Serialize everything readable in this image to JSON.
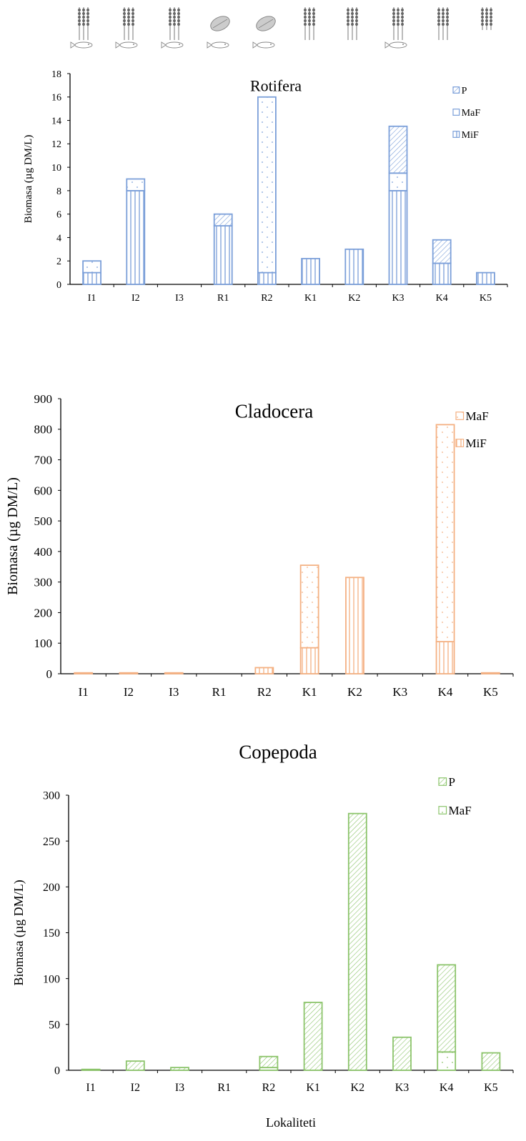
{
  "chart_data": [
    {
      "type": "bar",
      "stacked": true,
      "title": "Rotifera",
      "ylabel": "Biomasa (µg DM/L)",
      "xlabel": "",
      "ylim": [
        0,
        18
      ],
      "yticks": [
        0,
        2,
        4,
        6,
        8,
        10,
        12,
        14,
        16,
        18
      ],
      "categories": [
        "I1",
        "I2",
        "I3",
        "R1",
        "R2",
        "K1",
        "K2",
        "K3",
        "K4",
        "K5"
      ],
      "color": "#7b9fd9",
      "legend_position": "top-right",
      "legend": [
        "P",
        "MaF",
        "MiF"
      ],
      "series": [
        {
          "name": "MiF",
          "pattern": "vertical",
          "values": [
            1,
            8,
            0,
            5,
            1,
            2.2,
            3,
            8,
            1.8,
            1
          ]
        },
        {
          "name": "MaF",
          "pattern": "dots",
          "values": [
            1,
            1,
            0,
            0,
            15,
            0,
            0,
            1.5,
            0,
            0
          ]
        },
        {
          "name": "P",
          "pattern": "diagonal",
          "values": [
            0,
            0,
            0,
            1,
            0,
            0,
            0,
            4,
            2,
            0
          ]
        }
      ]
    },
    {
      "type": "bar",
      "stacked": true,
      "title": "Cladocera",
      "ylabel": "Biomasa (µg DM/L)",
      "xlabel": "",
      "ylim": [
        0,
        900
      ],
      "yticks": [
        0,
        100,
        200,
        300,
        400,
        500,
        600,
        700,
        800,
        900
      ],
      "categories": [
        "I1",
        "I2",
        "I3",
        "R1",
        "R2",
        "K1",
        "K2",
        "K3",
        "K4",
        "K5"
      ],
      "color": "#f4b183",
      "legend_position": "top-right",
      "legend": [
        "MaF",
        "MiF"
      ],
      "series": [
        {
          "name": "MiF",
          "pattern": "vertical",
          "values": [
            3,
            3,
            3,
            0,
            20,
            85,
            315,
            0,
            105,
            3
          ]
        },
        {
          "name": "MaF",
          "pattern": "dots",
          "values": [
            0,
            0,
            0,
            0,
            0,
            270,
            0,
            0,
            710,
            0
          ]
        }
      ]
    },
    {
      "type": "bar",
      "stacked": true,
      "title": "Copepoda",
      "ylabel": "Biomasa (µg DM/L)",
      "xlabel": "Lokaliteti",
      "ylim": [
        0,
        300
      ],
      "yticks": [
        0,
        50,
        100,
        150,
        200,
        250,
        300
      ],
      "categories": [
        "I1",
        "I2",
        "I3",
        "R1",
        "R2",
        "K1",
        "K2",
        "K3",
        "K4",
        "K5"
      ],
      "color": "#8cc46b",
      "legend_position": "top-right",
      "legend": [
        "P",
        "MaF"
      ],
      "series": [
        {
          "name": "MaF",
          "pattern": "dots",
          "values": [
            0,
            0,
            0,
            0,
            3,
            0,
            0,
            0,
            20,
            0
          ]
        },
        {
          "name": "P",
          "pattern": "diagonal",
          "values": [
            1,
            10,
            3,
            0,
            12,
            74,
            280,
            36,
            95,
            19
          ]
        }
      ]
    }
  ]
}
